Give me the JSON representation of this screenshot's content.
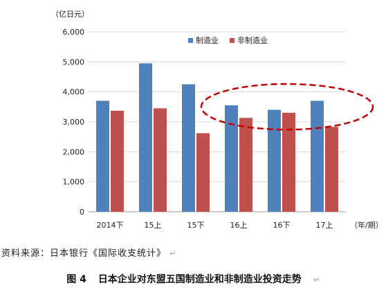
{
  "chart_data": {
    "type": "bar",
    "unit_label": "（亿日元）",
    "x_unit_label": "（年/期）",
    "categories": [
      "2014下",
      "15上",
      "15下",
      "16上",
      "16下",
      "17上"
    ],
    "series": [
      {
        "name": "制造业",
        "color": "#4f81bd",
        "values": [
          3700,
          4950,
          4250,
          3550,
          3400,
          3700
        ]
      },
      {
        "name": "非制造业",
        "color": "#c0504d",
        "values": [
          3370,
          3450,
          2620,
          3130,
          3300,
          2830
        ]
      }
    ],
    "ylim": [
      0,
      6000
    ],
    "yticks": [
      "0",
      "1,000",
      "2,000",
      "3,000",
      "4,000",
      "5,000",
      "6,000"
    ],
    "ytick_values": [
      0,
      1000,
      2000,
      3000,
      4000,
      5000,
      6000
    ],
    "grid": true,
    "legend_position": "top-center",
    "annotation": {
      "shape": "dashed-ellipse",
      "color": "#c00000",
      "categories": [
        "16上",
        "16下",
        "17上"
      ]
    }
  },
  "source_note": "资料来源：日本银行《国际收支统计》",
  "source_mark": "↵",
  "caption": {
    "number": "图 4",
    "title": "日本企业对东盟五国制造业和非制造业投资走势",
    "mark": "↵"
  }
}
